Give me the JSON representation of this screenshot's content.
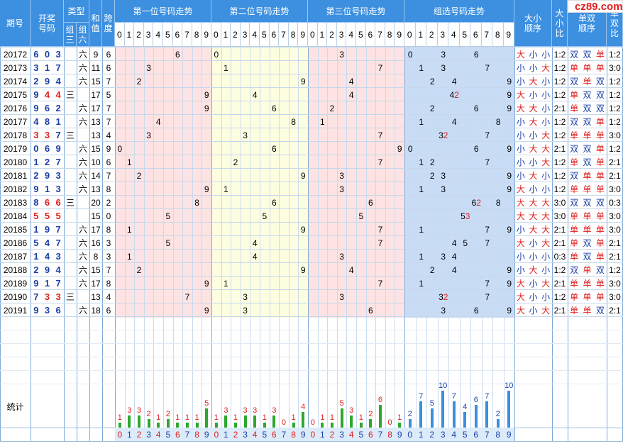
{
  "header": {
    "period": "期号",
    "draw": "开奖\n号码",
    "type": "类型",
    "type_z3": "组\n三",
    "type_z6": "组\n六",
    "sum": "和\n值",
    "span": "跨\n度",
    "pos1": "第一位号码走势",
    "pos2": "第二位号码走势",
    "pos3": "第三位号码走势",
    "group": "组选号码走势",
    "bigsmall_order": "大小\n顺序",
    "bigsmall_ratio": "大\n小\n比",
    "oddeven_order": "单双\n顺序",
    "oddeven_ratio": "单\n双\n比",
    "digits": [
      "0",
      "1",
      "2",
      "3",
      "4",
      "5",
      "6",
      "7",
      "8",
      "9"
    ]
  },
  "rows": [
    {
      "period": "20172",
      "d": [
        6,
        0,
        3
      ],
      "type": "六",
      "sum": "9",
      "span": "6",
      "bs": [
        "大",
        "小",
        "小"
      ],
      "bsr": "1:2",
      "oe": [
        "双",
        "双",
        "单"
      ],
      "oer": "1:2",
      "grp": {
        "0": "0",
        "3": "3",
        "6": "6"
      }
    },
    {
      "period": "20173",
      "d": [
        3,
        1,
        7
      ],
      "type": "六",
      "sum": "11",
      "span": "6",
      "bs": [
        "小",
        "小",
        "大"
      ],
      "bsr": "1:2",
      "oe": [
        "单",
        "单",
        "单"
      ],
      "oer": "3:0",
      "grp": {
        "1": "1",
        "3": "3",
        "7": "7"
      }
    },
    {
      "period": "20174",
      "d": [
        2,
        9,
        4
      ],
      "type": "六",
      "sum": "15",
      "span": "7",
      "bs": [
        "小",
        "大",
        "小"
      ],
      "bsr": "1:2",
      "oe": [
        "双",
        "单",
        "双"
      ],
      "oer": "1:2",
      "grp": {
        "2": "2",
        "4": "4",
        "9": "9"
      }
    },
    {
      "period": "20175",
      "d": [
        9,
        4,
        4
      ],
      "type": "三",
      "sum": "17",
      "span": "5",
      "bs": [
        "大",
        "小",
        "小"
      ],
      "bsr": "1:2",
      "oe": [
        "单",
        "双",
        "双"
      ],
      "oer": "1:2",
      "grp": {
        "4": "42",
        "9": "9"
      }
    },
    {
      "period": "20176",
      "d": [
        9,
        6,
        2
      ],
      "type": "六",
      "sum": "17",
      "span": "7",
      "bs": [
        "大",
        "大",
        "小"
      ],
      "bsr": "2:1",
      "oe": [
        "单",
        "双",
        "双"
      ],
      "oer": "1:2",
      "grp": {
        "2": "2",
        "6": "6",
        "9": "9"
      }
    },
    {
      "period": "20177",
      "d": [
        4,
        8,
        1
      ],
      "type": "六",
      "sum": "13",
      "span": "7",
      "bs": [
        "小",
        "大",
        "小"
      ],
      "bsr": "1:2",
      "oe": [
        "双",
        "双",
        "单"
      ],
      "oer": "1:2",
      "grp": {
        "1": "1",
        "4": "4",
        "8": "8"
      }
    },
    {
      "period": "20178",
      "d": [
        3,
        3,
        7
      ],
      "type": "三",
      "sum": "13",
      "span": "4",
      "bs": [
        "小",
        "小",
        "大"
      ],
      "bsr": "1:2",
      "oe": [
        "单",
        "单",
        "单"
      ],
      "oer": "3:0",
      "grp": {
        "3": "32",
        "7": "7"
      }
    },
    {
      "period": "20179",
      "d": [
        0,
        6,
        9
      ],
      "type": "六",
      "sum": "15",
      "span": "9",
      "bs": [
        "小",
        "大",
        "大"
      ],
      "bsr": "2:1",
      "oe": [
        "双",
        "双",
        "单"
      ],
      "oer": "1:2",
      "grp": {
        "0": "0",
        "6": "6",
        "9": "9"
      }
    },
    {
      "period": "20180",
      "d": [
        1,
        2,
        7
      ],
      "type": "六",
      "sum": "10",
      "span": "6",
      "bs": [
        "小",
        "小",
        "大"
      ],
      "bsr": "1:2",
      "oe": [
        "单",
        "双",
        "单"
      ],
      "oer": "2:1",
      "grp": {
        "1": "1",
        "2": "2",
        "7": "7"
      }
    },
    {
      "period": "20181",
      "d": [
        2,
        9,
        3
      ],
      "type": "六",
      "sum": "14",
      "span": "7",
      "bs": [
        "小",
        "大",
        "小"
      ],
      "bsr": "1:2",
      "oe": [
        "双",
        "单",
        "单"
      ],
      "oer": "2:1",
      "grp": {
        "2": "2",
        "3": "3",
        "9": "9"
      }
    },
    {
      "period": "20182",
      "d": [
        9,
        1,
        3
      ],
      "type": "六",
      "sum": "13",
      "span": "8",
      "bs": [
        "大",
        "小",
        "小"
      ],
      "bsr": "1:2",
      "oe": [
        "单",
        "单",
        "单"
      ],
      "oer": "3:0",
      "grp": {
        "1": "1",
        "3": "3",
        "9": "9"
      }
    },
    {
      "period": "20183",
      "d": [
        8,
        6,
        6
      ],
      "type": "三",
      "sum": "20",
      "span": "2",
      "bs": [
        "大",
        "大",
        "大"
      ],
      "bsr": "3:0",
      "oe": [
        "双",
        "双",
        "双"
      ],
      "oer": "0:3",
      "grp": {
        "6": "62",
        "8": "8"
      }
    },
    {
      "period": "20184",
      "d": [
        5,
        5,
        5
      ],
      "type": "",
      "sum": "15",
      "span": "0",
      "bs": [
        "大",
        "大",
        "大"
      ],
      "bsr": "3:0",
      "oe": [
        "单",
        "单",
        "单"
      ],
      "oer": "3:0",
      "grp": {
        "5": "53"
      }
    },
    {
      "period": "20185",
      "d": [
        1,
        9,
        7
      ],
      "type": "六",
      "sum": "17",
      "span": "8",
      "bs": [
        "小",
        "大",
        "大"
      ],
      "bsr": "2:1",
      "oe": [
        "单",
        "单",
        "单"
      ],
      "oer": "3:0",
      "grp": {
        "1": "1",
        "7": "7",
        "9": "9"
      }
    },
    {
      "period": "20186",
      "d": [
        5,
        4,
        7
      ],
      "type": "六",
      "sum": "16",
      "span": "3",
      "bs": [
        "大",
        "小",
        "大"
      ],
      "bsr": "2:1",
      "oe": [
        "单",
        "双",
        "单"
      ],
      "oer": "2:1",
      "grp": {
        "4": "4",
        "5": "5",
        "7": "7"
      }
    },
    {
      "period": "20187",
      "d": [
        1,
        4,
        3
      ],
      "type": "六",
      "sum": "8",
      "span": "3",
      "bs": [
        "小",
        "小",
        "小"
      ],
      "bsr": "0:3",
      "oe": [
        "单",
        "双",
        "单"
      ],
      "oer": "2:1",
      "grp": {
        "1": "1",
        "3": "3",
        "4": "4"
      }
    },
    {
      "period": "20188",
      "d": [
        2,
        9,
        4
      ],
      "type": "六",
      "sum": "15",
      "span": "7",
      "bs": [
        "小",
        "大",
        "小"
      ],
      "bsr": "1:2",
      "oe": [
        "双",
        "单",
        "双"
      ],
      "oer": "1:2",
      "grp": {
        "2": "2",
        "4": "4",
        "9": "9"
      }
    },
    {
      "period": "20189",
      "d": [
        9,
        1,
        7
      ],
      "type": "六",
      "sum": "17",
      "span": "8",
      "bs": [
        "大",
        "小",
        "大"
      ],
      "bsr": "2:1",
      "oe": [
        "单",
        "单",
        "单"
      ],
      "oer": "3:0",
      "grp": {
        "1": "1",
        "7": "7",
        "9": "9"
      }
    },
    {
      "period": "20190",
      "d": [
        7,
        3,
        3
      ],
      "type": "三",
      "sum": "13",
      "span": "4",
      "bs": [
        "大",
        "小",
        "小"
      ],
      "bsr": "1:2",
      "oe": [
        "单",
        "单",
        "单"
      ],
      "oer": "3:0",
      "grp": {
        "3": "32",
        "7": "7"
      }
    },
    {
      "period": "20191",
      "d": [
        9,
        3,
        6
      ],
      "type": "六",
      "sum": "18",
      "span": "6",
      "bs": [
        "大",
        "小",
        "大"
      ],
      "bsr": "2:1",
      "oe": [
        "单",
        "单",
        "双"
      ],
      "oer": "2:1",
      "grp": {
        "3": "3",
        "6": "6",
        "9": "9"
      }
    }
  ],
  "stats": {
    "label": "统计",
    "pos1": [
      1,
      3,
      3,
      2,
      1,
      2,
      1,
      1,
      1,
      5
    ],
    "pos2": [
      1,
      3,
      1,
      3,
      3,
      1,
      3,
      0,
      1,
      4
    ],
    "pos3": [
      0,
      1,
      1,
      5,
      3,
      1,
      2,
      6,
      0,
      1
    ],
    "group": [
      2,
      7,
      5,
      10,
      7,
      4,
      6,
      7,
      2,
      10
    ]
  },
  "logo": {
    "text": "cz89.com"
  },
  "colors": {
    "header_blue": "#3d90e0",
    "pos1_bg": "#fde3e3",
    "pos2_bg": "#fdfde0",
    "pos3_bg": "#fde3e3",
    "group_bg": "#c8dcf6",
    "red": "#e02020",
    "blue": "#1a3fa8",
    "bar_green": "#2da82d",
    "bar_red": "#dd2222",
    "bar_blue": "#3a8fe0"
  }
}
